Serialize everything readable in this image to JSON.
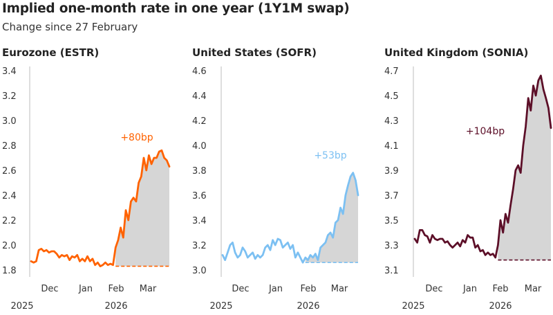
{
  "header": {
    "title": "Implied one-month rate in one year (1Y1M swap)",
    "subtitle": "Change since 27 February"
  },
  "chart_data": [
    {
      "type": "area",
      "title": "Eurozone (ESTR)",
      "color": "#ff6200",
      "annotation": "+80bp",
      "ylim": [
        1.8,
        3.45
      ],
      "yticks": [
        "1.8",
        "2.0",
        "2.2",
        "2.4",
        "2.6",
        "2.8",
        "3.0",
        "3.2",
        "3.4"
      ],
      "xticks": [
        "Dec",
        "Jan",
        "Feb",
        "Mar"
      ],
      "years": [
        "2025",
        "2026"
      ],
      "baseline": 1.83,
      "x": [
        0,
        0.5,
        1,
        1.5,
        2,
        2.5,
        3,
        3.5,
        4,
        4.5,
        5,
        5.5,
        6,
        6.5,
        7,
        7.5,
        8,
        8.5,
        9,
        9.5,
        10,
        10.5,
        11,
        11.5,
        12,
        12.5,
        13,
        13.5,
        14,
        14.5,
        15,
        15.5,
        16,
        16.5,
        17,
        17.5,
        18,
        18.5,
        19,
        19.5,
        20,
        20.5,
        21,
        21.5,
        22,
        22.5,
        23,
        23.5,
        24,
        24.5,
        25,
        25.5,
        26,
        26.5,
        27
      ],
      "y": [
        1.87,
        1.86,
        1.87,
        1.96,
        1.97,
        1.95,
        1.96,
        1.94,
        1.95,
        1.95,
        1.93,
        1.9,
        1.92,
        1.91,
        1.92,
        1.88,
        1.91,
        1.9,
        1.92,
        1.87,
        1.89,
        1.87,
        1.91,
        1.87,
        1.89,
        1.84,
        1.86,
        1.83,
        1.84,
        1.86,
        1.84,
        1.85,
        1.84,
        1.98,
        2.04,
        2.14,
        2.06,
        2.28,
        2.2,
        2.35,
        2.38,
        2.35,
        2.5,
        2.55,
        2.7,
        2.6,
        2.72,
        2.65,
        2.7,
        2.7,
        2.75,
        2.76,
        2.7,
        2.68,
        2.63
      ]
    },
    {
      "type": "area",
      "title": "United States (SOFR)",
      "color": "#7cc0f2",
      "annotation": "+53bp",
      "ylim": [
        2.98,
        4.67
      ],
      "yticks": [
        "3.0",
        "3.2",
        "3.4",
        "3.6",
        "3.8",
        "4.0",
        "4.2",
        "4.4",
        "4.6"
      ],
      "xticks": [
        "Dec",
        "Jan",
        "Feb",
        "Mar"
      ],
      "years": [
        "2025",
        "2026"
      ],
      "baseline": 3.06,
      "x": [
        0,
        0.5,
        1,
        1.5,
        2,
        2.5,
        3,
        3.5,
        4,
        4.5,
        5,
        5.5,
        6,
        6.5,
        7,
        7.5,
        8,
        8.5,
        9,
        9.5,
        10,
        10.5,
        11,
        11.5,
        12,
        12.5,
        13,
        13.5,
        14,
        14.5,
        15,
        15.5,
        16,
        16.5,
        17,
        17.5,
        18,
        18.5,
        19,
        19.5,
        20,
        20.5,
        21,
        21.5,
        22,
        22.5,
        23,
        23.5,
        24,
        24.5,
        25,
        25.5,
        26,
        26.5,
        27
      ],
      "y": [
        3.12,
        3.08,
        3.14,
        3.2,
        3.22,
        3.14,
        3.1,
        3.12,
        3.18,
        3.15,
        3.1,
        3.12,
        3.14,
        3.09,
        3.12,
        3.1,
        3.12,
        3.18,
        3.2,
        3.16,
        3.24,
        3.2,
        3.25,
        3.24,
        3.18,
        3.2,
        3.22,
        3.17,
        3.2,
        3.1,
        3.14,
        3.1,
        3.06,
        3.1,
        3.08,
        3.12,
        3.1,
        3.13,
        3.08,
        3.18,
        3.2,
        3.22,
        3.28,
        3.3,
        3.26,
        3.38,
        3.4,
        3.5,
        3.45,
        3.6,
        3.68,
        3.75,
        3.78,
        3.72,
        3.6
      ]
    },
    {
      "type": "area",
      "title": "United Kingdom (SONIA)",
      "color": "#5c0f28",
      "annotation": "+104bp",
      "ylim": [
        3.05,
        4.75
      ],
      "yticks": [
        "3.1",
        "3.3",
        "3.5",
        "3.7",
        "3.9",
        "4.1",
        "4.3",
        "4.5",
        "4.7"
      ],
      "xticks": [
        "Dec",
        "Jan",
        "Feb",
        "Mar"
      ],
      "years": [
        "2025",
        "2026"
      ],
      "baseline": 3.18,
      "x": [
        0,
        0.5,
        1,
        1.5,
        2,
        2.5,
        3,
        3.5,
        4,
        4.5,
        5,
        5.5,
        6,
        6.5,
        7,
        7.5,
        8,
        8.5,
        9,
        9.5,
        10,
        10.5,
        11,
        11.5,
        12,
        12.5,
        13,
        13.5,
        14,
        14.5,
        15,
        15.5,
        16,
        16.5,
        17,
        17.5,
        18,
        18.5,
        19,
        19.5,
        20,
        20.5,
        21,
        21.5,
        22,
        22.5,
        23,
        23.5,
        24,
        24.5,
        25,
        25.5,
        26,
        26.5,
        27
      ],
      "y": [
        3.35,
        3.32,
        3.42,
        3.42,
        3.38,
        3.37,
        3.32,
        3.38,
        3.35,
        3.34,
        3.35,
        3.35,
        3.32,
        3.33,
        3.3,
        3.28,
        3.3,
        3.32,
        3.29,
        3.34,
        3.32,
        3.38,
        3.36,
        3.36,
        3.28,
        3.3,
        3.25,
        3.26,
        3.22,
        3.24,
        3.22,
        3.23,
        3.2,
        3.3,
        3.5,
        3.4,
        3.55,
        3.48,
        3.62,
        3.75,
        3.9,
        3.94,
        3.88,
        4.1,
        4.25,
        4.48,
        4.38,
        4.58,
        4.5,
        4.62,
        4.66,
        4.55,
        4.48,
        4.4,
        4.24
      ]
    }
  ]
}
